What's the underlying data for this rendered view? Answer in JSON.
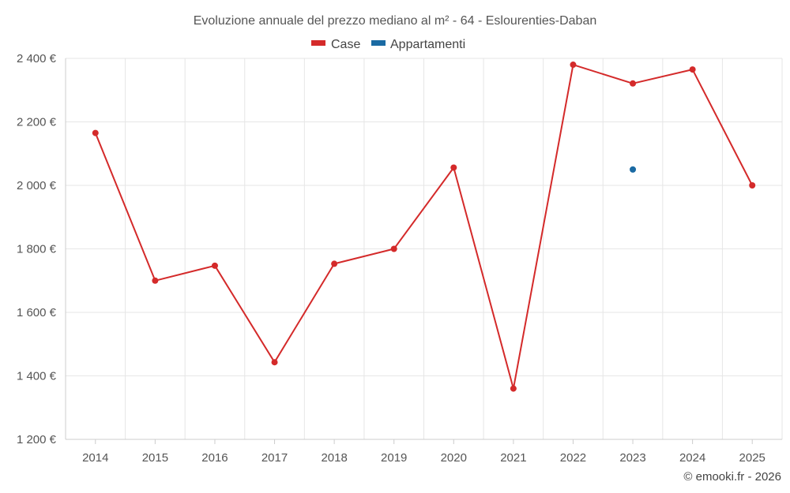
{
  "chart_data": {
    "type": "line",
    "title": "Evoluzione annuale del prezzo mediano al m² - 64 - Eslourenties-Daban",
    "categories": [
      "2014",
      "2015",
      "2016",
      "2017",
      "2018",
      "2019",
      "2020",
      "2021",
      "2022",
      "2023",
      "2024",
      "2025"
    ],
    "series": [
      {
        "name": "Case",
        "color": "#d42a2a",
        "values": [
          2165,
          1700,
          1747,
          1443,
          1753,
          1800,
          2056,
          1360,
          2380,
          2321,
          2365,
          2000
        ]
      },
      {
        "name": "Appartamenti",
        "color": "#1a6aa3",
        "values": [
          null,
          null,
          null,
          null,
          null,
          null,
          null,
          null,
          null,
          2050,
          null,
          null
        ]
      }
    ],
    "ylim": [
      1200,
      2400
    ],
    "yticks": [
      1200,
      1400,
      1600,
      1800,
      2000,
      2200,
      2400
    ],
    "ytick_labels": [
      "1 200 €",
      "1 400 €",
      "1 600 €",
      "1 800 €",
      "2 000 €",
      "2 200 €",
      "2 400 €"
    ],
    "xlabel": "",
    "ylabel": "",
    "grid": true,
    "legend_position": "top-center"
  },
  "credit": "© emooki.fr - 2026"
}
